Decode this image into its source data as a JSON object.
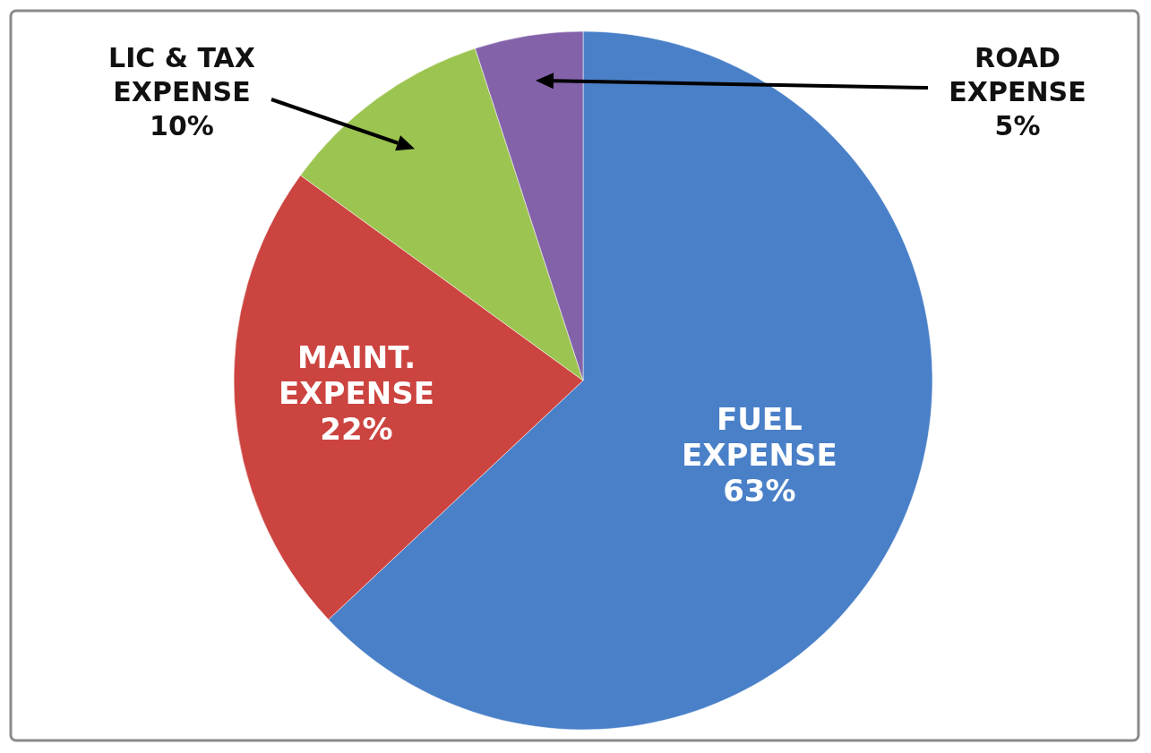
{
  "chart_data": {
    "type": "pie",
    "categories": [
      "FUEL EXPENSE",
      "MAINT. EXPENSE",
      "LIC & TAX EXPENSE",
      "ROAD EXPENSE"
    ],
    "values": [
      63,
      22,
      10,
      5
    ],
    "value_labels": [
      "63%",
      "22%",
      "10%",
      "5%"
    ],
    "colors": [
      "#4a80c8",
      "#cc4440",
      "#9cc450",
      "#8462aa"
    ]
  }
}
